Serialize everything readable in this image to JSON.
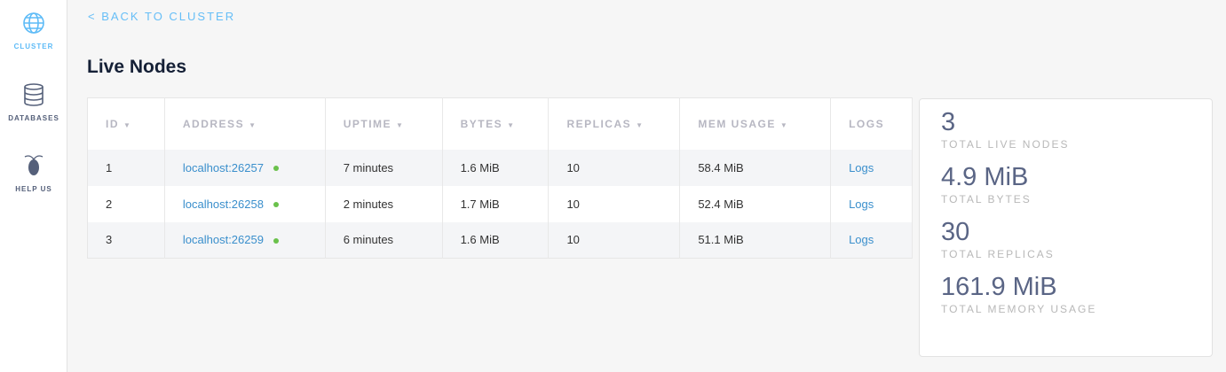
{
  "sidebar": {
    "items": [
      {
        "label": "CLUSTER",
        "icon": "globe-icon",
        "active": true
      },
      {
        "label": "DATABASES",
        "icon": "database-icon"
      },
      {
        "label": "HELP US",
        "icon": "cockroach-icon"
      }
    ]
  },
  "back_link": "< BACK TO CLUSTER",
  "page_title": "Live Nodes",
  "table": {
    "headers": [
      "ID",
      "ADDRESS",
      "UPTIME",
      "BYTES",
      "REPLICAS",
      "MEM USAGE",
      "LOGS"
    ],
    "rows": [
      {
        "id": "1",
        "address": "localhost:26257",
        "uptime": "7 minutes",
        "bytes": "1.6 MiB",
        "replicas": "10",
        "mem": "58.4 MiB",
        "logs": "Logs"
      },
      {
        "id": "2",
        "address": "localhost:26258",
        "uptime": "2 minutes",
        "bytes": "1.7 MiB",
        "replicas": "10",
        "mem": "52.4 MiB",
        "logs": "Logs"
      },
      {
        "id": "3",
        "address": "localhost:26259",
        "uptime": "6 minutes",
        "bytes": "1.6 MiB",
        "replicas": "10",
        "mem": "51.1 MiB",
        "logs": "Logs"
      }
    ]
  },
  "summary": [
    {
      "value": "3",
      "label": "TOTAL LIVE NODES"
    },
    {
      "value": "4.9 MiB",
      "label": "TOTAL BYTES"
    },
    {
      "value": "30",
      "label": "TOTAL REPLICAS"
    },
    {
      "value": "161.9 MiB",
      "label": "TOTAL MEMORY USAGE"
    }
  ],
  "colors": {
    "accent": "#5dbbf7",
    "link": "#3a8fcc",
    "status_live": "#6ac14b"
  }
}
